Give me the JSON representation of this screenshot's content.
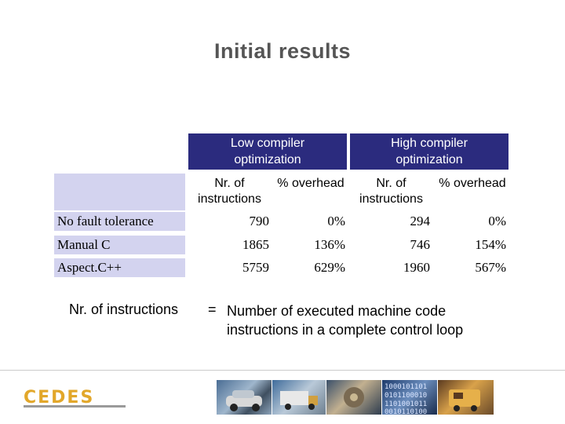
{
  "slide": {
    "title": "Initial results"
  },
  "table": {
    "groups": [
      "Low compiler optimization",
      "High compiler optimization"
    ],
    "subheaders": [
      "Nr. of instructions",
      "% overhead",
      "Nr. of instructions",
      "% overhead"
    ],
    "rows": [
      {
        "label": "No fault tolerance",
        "values": [
          "790",
          "0%",
          "294",
          "0%"
        ]
      },
      {
        "label": "Manual C",
        "values": [
          "1865",
          "136%",
          "746",
          "154%"
        ]
      },
      {
        "label": "Aspect.C++",
        "values": [
          "5759",
          "629%",
          "1960",
          "567%"
        ]
      }
    ]
  },
  "note": {
    "term": "Nr. of instructions",
    "eq": "=",
    "definition_line1": "Number of executed machine code",
    "definition_line2": "instructions in a complete control loop"
  },
  "footer": {
    "logo_text": "CEDES"
  },
  "colors": {
    "header_bg": "#2b2b7e",
    "row_bg": "#d3d3ef",
    "title": "#555555",
    "logo": "#e2a72a"
  }
}
